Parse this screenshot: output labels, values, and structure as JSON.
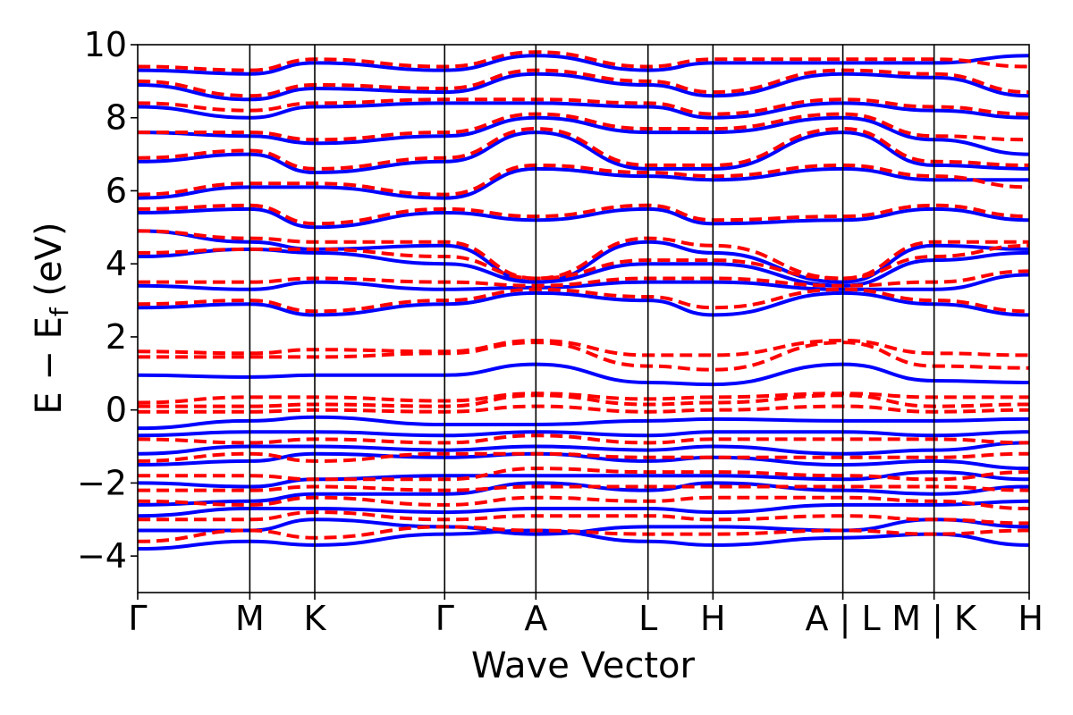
{
  "chart_data": {
    "type": "line",
    "title": "",
    "xlabel": "Wave Vector",
    "ylabel_main": "E − E",
    "ylabel_sub": "f",
    "ylabel_unit": " (eV)",
    "ylim": [
      -5,
      10
    ],
    "yticks": [
      {
        "value": -4,
        "label": "−4"
      },
      {
        "value": -2,
        "label": "−2"
      },
      {
        "value": 0,
        "label": "0"
      },
      {
        "value": 2,
        "label": "2"
      },
      {
        "value": 4,
        "label": "4"
      },
      {
        "value": 6,
        "label": "6"
      },
      {
        "value": 8,
        "label": "8"
      },
      {
        "value": 10,
        "label": "10"
      }
    ],
    "xlim": [
      0,
      11.53
    ],
    "kpoints": [
      {
        "x": 0.0,
        "label": "Γ"
      },
      {
        "x": 1.45,
        "label": "M"
      },
      {
        "x": 2.29,
        "label": "K"
      },
      {
        "x": 3.97,
        "label": "Γ"
      },
      {
        "x": 5.15,
        "label": "A"
      },
      {
        "x": 6.6,
        "label": "L"
      },
      {
        "x": 7.44,
        "label": "H"
      },
      {
        "x": 9.12,
        "label": "A | L"
      },
      {
        "x": 10.3,
        "label": "M | K"
      },
      {
        "x": 11.53,
        "label": "H"
      }
    ],
    "grid": false,
    "legend": "none",
    "series": [
      {
        "style": "solid",
        "color": "#0000ff",
        "bands": [
          [
            -3.8,
            -3.6,
            -3.7,
            -3.4,
            -3.3,
            -3.6,
            -3.7,
            -3.5,
            -3.4,
            -3.7
          ],
          [
            -3.3,
            -3.3,
            -3.0,
            -3.2,
            -3.4,
            -3.2,
            -3.2,
            -3.3,
            -3.0,
            -3.2
          ],
          [
            -2.9,
            -2.7,
            -2.7,
            -2.8,
            -2.7,
            -2.7,
            -2.8,
            -2.6,
            -2.6,
            -2.5
          ],
          [
            -2.6,
            -2.5,
            -2.3,
            -2.3,
            -2.0,
            -2.2,
            -2.0,
            -2.2,
            -2.3,
            -2.1
          ],
          [
            -2.0,
            -2.1,
            -1.9,
            -1.8,
            -1.8,
            -1.8,
            -1.8,
            -1.9,
            -1.7,
            -1.9
          ],
          [
            -1.5,
            -1.4,
            -1.2,
            -1.3,
            -1.2,
            -1.4,
            -1.3,
            -1.5,
            -1.4,
            -1.6
          ],
          [
            -1.2,
            -1.0,
            -1.0,
            -1.1,
            -1.0,
            -1.1,
            -1.0,
            -1.2,
            -1.1,
            -0.9
          ],
          [
            -0.7,
            -0.6,
            -0.6,
            -0.7,
            -0.6,
            -0.7,
            -0.6,
            -0.6,
            -0.7,
            -0.6
          ],
          [
            -0.5,
            -0.3,
            -0.2,
            -0.4,
            -0.4,
            -0.3,
            -0.25,
            -0.3,
            -0.3,
            -0.25
          ],
          [
            0.95,
            0.9,
            0.95,
            0.95,
            1.25,
            0.75,
            0.7,
            1.25,
            0.8,
            0.75
          ],
          [
            2.8,
            2.9,
            2.6,
            2.9,
            3.2,
            3.0,
            2.6,
            3.2,
            2.9,
            2.6
          ],
          [
            3.4,
            3.3,
            3.5,
            3.3,
            3.35,
            3.5,
            3.5,
            3.3,
            3.3,
            3.7
          ],
          [
            4.2,
            4.4,
            4.3,
            4.0,
            3.5,
            4.0,
            4.0,
            3.4,
            4.1,
            4.3
          ],
          [
            4.9,
            4.6,
            4.4,
            4.5,
            3.5,
            4.6,
            4.3,
            3.5,
            4.5,
            4.4
          ],
          [
            5.4,
            5.5,
            5.0,
            5.4,
            5.2,
            5.5,
            5.1,
            5.2,
            5.5,
            5.2
          ],
          [
            5.8,
            6.1,
            6.1,
            5.8,
            6.6,
            6.4,
            6.3,
            6.6,
            6.3,
            6.3
          ],
          [
            6.8,
            7.0,
            6.5,
            6.8,
            7.6,
            6.6,
            6.6,
            7.6,
            6.7,
            6.6
          ],
          [
            7.6,
            7.5,
            7.3,
            7.5,
            8.0,
            7.6,
            7.6,
            8.0,
            7.4,
            7.0
          ],
          [
            8.3,
            8.0,
            8.3,
            8.4,
            8.4,
            8.3,
            8.0,
            8.4,
            8.2,
            8.0
          ],
          [
            8.9,
            8.5,
            8.8,
            8.7,
            9.2,
            8.9,
            8.6,
            9.2,
            9.1,
            8.6
          ],
          [
            9.3,
            9.2,
            9.5,
            9.3,
            9.7,
            9.3,
            9.5,
            9.5,
            9.5,
            9.7
          ]
        ]
      },
      {
        "style": "dashed",
        "color": "#ff0000",
        "bands": [
          [
            -3.6,
            -3.3,
            -3.5,
            -3.2,
            -3.3,
            -3.4,
            -3.4,
            -3.3,
            -3.4,
            -3.3
          ],
          [
            -3.0,
            -3.0,
            -2.8,
            -3.0,
            -2.9,
            -2.9,
            -3.0,
            -2.9,
            -3.0,
            -3.1
          ],
          [
            -2.5,
            -2.6,
            -2.4,
            -2.6,
            -2.4,
            -2.5,
            -2.4,
            -2.4,
            -2.5,
            -2.7
          ],
          [
            -2.2,
            -2.2,
            -2.1,
            -2.2,
            -2.1,
            -2.1,
            -2.1,
            -2.1,
            -2.1,
            -2.2
          ],
          [
            -1.8,
            -1.8,
            -1.9,
            -1.9,
            -1.6,
            -1.7,
            -1.7,
            -1.8,
            -1.9,
            -1.7
          ],
          [
            -1.4,
            -1.2,
            -1.4,
            -1.2,
            -1.2,
            -1.3,
            -1.3,
            -1.3,
            -1.3,
            -1.2
          ],
          [
            -0.8,
            -0.9,
            -0.8,
            -0.9,
            -0.7,
            -0.9,
            -0.8,
            -0.8,
            -0.8,
            -0.9
          ],
          [
            -0.05,
            -0.05,
            0.0,
            -0.05,
            0.1,
            -0.05,
            0.0,
            0.1,
            -0.05,
            0.0
          ],
          [
            0.1,
            0.1,
            0.15,
            0.1,
            0.4,
            0.15,
            0.2,
            0.4,
            0.1,
            0.15
          ],
          [
            0.2,
            0.35,
            0.35,
            0.25,
            0.45,
            0.3,
            0.35,
            0.45,
            0.35,
            0.35
          ],
          [
            1.45,
            1.45,
            1.45,
            1.55,
            1.85,
            1.2,
            1.1,
            1.85,
            1.2,
            1.15
          ],
          [
            1.6,
            1.55,
            1.65,
            1.6,
            1.9,
            1.5,
            1.5,
            1.9,
            1.55,
            1.5
          ],
          [
            2.9,
            3.0,
            2.7,
            3.0,
            3.3,
            3.1,
            2.8,
            3.3,
            3.0,
            2.7
          ],
          [
            3.5,
            3.5,
            3.6,
            3.5,
            3.4,
            3.6,
            3.6,
            3.4,
            3.5,
            3.8
          ],
          [
            4.3,
            4.4,
            4.4,
            4.2,
            3.6,
            4.1,
            4.1,
            3.6,
            4.2,
            4.5
          ],
          [
            4.9,
            4.7,
            4.6,
            4.6,
            3.6,
            4.7,
            4.5,
            3.6,
            4.6,
            4.6
          ],
          [
            5.5,
            5.6,
            5.1,
            5.5,
            5.3,
            5.6,
            5.2,
            5.3,
            5.6,
            5.3
          ],
          [
            5.9,
            6.2,
            6.2,
            5.9,
            6.7,
            6.5,
            6.4,
            6.7,
            6.4,
            6.1
          ],
          [
            6.9,
            7.1,
            6.6,
            6.9,
            7.7,
            6.7,
            6.7,
            7.7,
            6.8,
            6.7
          ],
          [
            7.6,
            7.6,
            7.4,
            7.6,
            8.1,
            7.7,
            7.7,
            8.1,
            7.5,
            7.4
          ],
          [
            8.4,
            8.2,
            8.4,
            8.5,
            8.5,
            8.4,
            8.1,
            8.5,
            8.3,
            8.1
          ],
          [
            9.0,
            8.6,
            8.9,
            8.8,
            9.3,
            9.0,
            8.7,
            9.3,
            9.2,
            8.7
          ],
          [
            9.4,
            9.3,
            9.6,
            9.4,
            9.8,
            9.4,
            9.6,
            9.6,
            9.6,
            9.4
          ]
        ]
      }
    ]
  }
}
